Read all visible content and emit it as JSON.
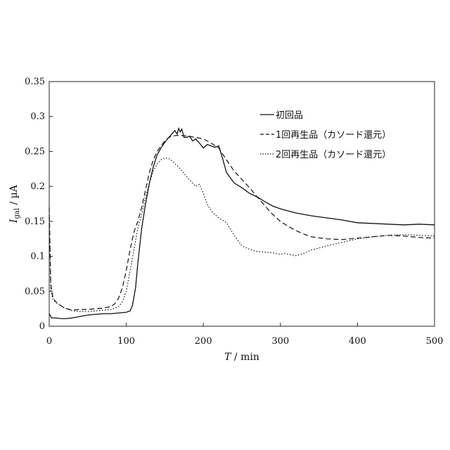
{
  "chart_data": {
    "type": "line",
    "xlabel": "T / min",
    "ylabel": "I gal / µA",
    "ylabel_main": "I",
    "ylabel_sub": "gal",
    "ylabel_unit": " / µA",
    "xlabel_var": "T",
    "xlabel_unit": " / min",
    "xlim": [
      0,
      500
    ],
    "ylim": [
      0,
      0.35
    ],
    "xticks": [
      "0",
      "100",
      "200",
      "300",
      "400",
      "500"
    ],
    "yticks": [
      "0",
      "0.05",
      "0.1",
      "0.15",
      "0.2",
      "0.25",
      "0.3",
      "0.35"
    ],
    "grid": false,
    "legend_position": "top-right",
    "series": [
      {
        "name": "初回品",
        "style": "solid",
        "x": [
          0,
          3,
          8,
          15,
          22,
          30,
          40,
          50,
          60,
          70,
          80,
          90,
          100,
          105,
          108,
          112,
          115,
          120,
          125,
          130,
          135,
          140,
          145,
          150,
          155,
          160,
          163,
          166,
          168,
          170,
          172,
          175,
          178,
          182,
          186,
          190,
          195,
          200,
          205,
          210,
          215,
          220,
          225,
          230,
          240,
          250,
          260,
          270,
          280,
          290,
          300,
          320,
          340,
          360,
          380,
          400,
          420,
          440,
          460,
          480,
          500
        ],
        "y": [
          0.018,
          0.012,
          0.012,
          0.011,
          0.011,
          0.012,
          0.014,
          0.016,
          0.017,
          0.018,
          0.018,
          0.019,
          0.02,
          0.022,
          0.03,
          0.055,
          0.09,
          0.14,
          0.175,
          0.205,
          0.228,
          0.245,
          0.255,
          0.263,
          0.27,
          0.276,
          0.28,
          0.275,
          0.283,
          0.278,
          0.282,
          0.27,
          0.27,
          0.272,
          0.265,
          0.268,
          0.262,
          0.255,
          0.26,
          0.258,
          0.256,
          0.258,
          0.24,
          0.22,
          0.205,
          0.198,
          0.19,
          0.185,
          0.178,
          0.172,
          0.168,
          0.162,
          0.158,
          0.155,
          0.152,
          0.148,
          0.147,
          0.146,
          0.145,
          0.146,
          0.145
        ]
      },
      {
        "name": "1回再生品（カソード還元）",
        "style": "dashed",
        "x": [
          0,
          2,
          5,
          10,
          20,
          30,
          40,
          50,
          60,
          70,
          80,
          85,
          90,
          95,
          100,
          105,
          110,
          115,
          120,
          125,
          130,
          135,
          140,
          145,
          150,
          155,
          160,
          165,
          170,
          180,
          190,
          200,
          210,
          220,
          230,
          240,
          250,
          260,
          270,
          280,
          290,
          300,
          310,
          320,
          330,
          340,
          360,
          380,
          400,
          420,
          440,
          460,
          480,
          500
        ],
        "y": [
          0.17,
          0.06,
          0.04,
          0.033,
          0.026,
          0.023,
          0.024,
          0.024,
          0.025,
          0.026,
          0.028,
          0.032,
          0.04,
          0.055,
          0.08,
          0.11,
          0.135,
          0.15,
          0.17,
          0.195,
          0.22,
          0.238,
          0.25,
          0.258,
          0.265,
          0.27,
          0.272,
          0.273,
          0.273,
          0.272,
          0.27,
          0.268,
          0.262,
          0.255,
          0.238,
          0.222,
          0.21,
          0.198,
          0.185,
          0.172,
          0.16,
          0.15,
          0.143,
          0.137,
          0.132,
          0.128,
          0.125,
          0.124,
          0.126,
          0.128,
          0.13,
          0.129,
          0.127,
          0.126
        ]
      },
      {
        "name": "2回再生品（カソード還元）",
        "style": "dotted",
        "x": [
          0,
          2,
          5,
          10,
          20,
          30,
          40,
          50,
          60,
          70,
          80,
          90,
          95,
          100,
          105,
          110,
          115,
          120,
          125,
          130,
          135,
          140,
          145,
          150,
          155,
          160,
          170,
          180,
          190,
          195,
          200,
          205,
          210,
          220,
          230,
          240,
          250,
          260,
          270,
          280,
          290,
          300,
          305,
          310,
          315,
          320,
          330,
          340,
          360,
          380,
          400,
          420,
          440,
          460,
          480,
          500
        ],
        "y": [
          0.16,
          0.05,
          0.038,
          0.033,
          0.026,
          0.022,
          0.021,
          0.021,
          0.022,
          0.023,
          0.024,
          0.028,
          0.035,
          0.05,
          0.08,
          0.11,
          0.14,
          0.16,
          0.185,
          0.205,
          0.222,
          0.232,
          0.238,
          0.241,
          0.24,
          0.236,
          0.225,
          0.212,
          0.2,
          0.203,
          0.19,
          0.175,
          0.165,
          0.155,
          0.148,
          0.13,
          0.115,
          0.11,
          0.107,
          0.106,
          0.105,
          0.103,
          0.104,
          0.103,
          0.102,
          0.101,
          0.104,
          0.109,
          0.115,
          0.12,
          0.125,
          0.128,
          0.13,
          0.131,
          0.13,
          0.129
        ]
      }
    ]
  }
}
